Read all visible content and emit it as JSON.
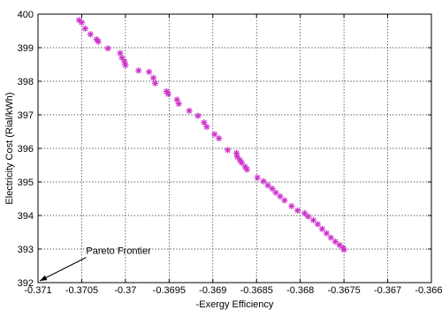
{
  "chart_data": {
    "type": "scatter",
    "title": "",
    "xlabel": "-Exergy Efficiency",
    "ylabel": "Electricity Cost (Rial/kWh)",
    "xlim": [
      -0.371,
      -0.3665
    ],
    "ylim": [
      392,
      400
    ],
    "xticks": [
      -0.371,
      -0.3705,
      -0.37,
      -0.3695,
      -0.369,
      -0.3685,
      -0.368,
      -0.3675,
      -0.367,
      -0.3665
    ],
    "xtick_labels": [
      "-0.371",
      "-0.3705",
      "-0.37",
      "-0.3695",
      "-0.369",
      "-0.3685",
      "-0.368",
      "-0.3675",
      "-0.367",
      "-0.3665"
    ],
    "yticks": [
      392,
      393,
      394,
      395,
      396,
      397,
      398,
      399,
      400
    ],
    "ytick_labels": [
      "392",
      "393",
      "394",
      "395",
      "396",
      "397",
      "398",
      "399",
      "400"
    ],
    "grid": true,
    "marker": "asterisk",
    "marker_color": "#cc33cc",
    "annotation": {
      "text": "Pareto Frontier",
      "arrow_to": [
        -0.371,
        392
      ],
      "arrow_from": [
        -0.37045,
        392.75
      ],
      "text_at": [
        -0.37045,
        392.85
      ]
    },
    "series": [
      {
        "points": [
          [
            -0.37053,
            399.82
          ],
          [
            -0.3705,
            399.75
          ],
          [
            -0.37046,
            399.57
          ],
          [
            -0.3704,
            399.4
          ],
          [
            -0.37033,
            399.25
          ],
          [
            -0.37031,
            399.18
          ],
          [
            -0.3702,
            398.98
          ],
          [
            -0.37006,
            398.84
          ],
          [
            -0.37004,
            398.7
          ],
          [
            -0.37001,
            398.58
          ],
          [
            -0.37,
            398.48
          ],
          [
            -0.36985,
            398.32
          ],
          [
            -0.36973,
            398.28
          ],
          [
            -0.36968,
            398.1
          ],
          [
            -0.36966,
            397.94
          ],
          [
            -0.36953,
            397.7
          ],
          [
            -0.36951,
            397.62
          ],
          [
            -0.36941,
            397.45
          ],
          [
            -0.36939,
            397.33
          ],
          [
            -0.36927,
            397.12
          ],
          [
            -0.36917,
            396.97
          ],
          [
            -0.3691,
            396.77
          ],
          [
            -0.36907,
            396.64
          ],
          [
            -0.36898,
            396.42
          ],
          [
            -0.36893,
            396.3
          ],
          [
            -0.36883,
            395.95
          ],
          [
            -0.36873,
            395.86
          ],
          [
            -0.36872,
            395.75
          ],
          [
            -0.36869,
            395.65
          ],
          [
            -0.36867,
            395.57
          ],
          [
            -0.36863,
            395.45
          ],
          [
            -0.36861,
            395.37
          ],
          [
            -0.36849,
            395.13
          ],
          [
            -0.36842,
            395.02
          ],
          [
            -0.36837,
            394.9
          ],
          [
            -0.36832,
            394.8
          ],
          [
            -0.36828,
            394.68
          ],
          [
            -0.36823,
            394.57
          ],
          [
            -0.36818,
            394.45
          ],
          [
            -0.3681,
            394.28
          ],
          [
            -0.36803,
            394.15
          ],
          [
            -0.36795,
            394.07
          ],
          [
            -0.36791,
            393.97
          ],
          [
            -0.36785,
            393.86
          ],
          [
            -0.3678,
            393.74
          ],
          [
            -0.36775,
            393.6
          ],
          [
            -0.3677,
            393.47
          ],
          [
            -0.36765,
            393.34
          ],
          [
            -0.3676,
            393.22
          ],
          [
            -0.36755,
            393.12
          ],
          [
            -0.36751,
            393.03
          ],
          [
            -0.3675,
            392.98
          ]
        ]
      }
    ]
  }
}
